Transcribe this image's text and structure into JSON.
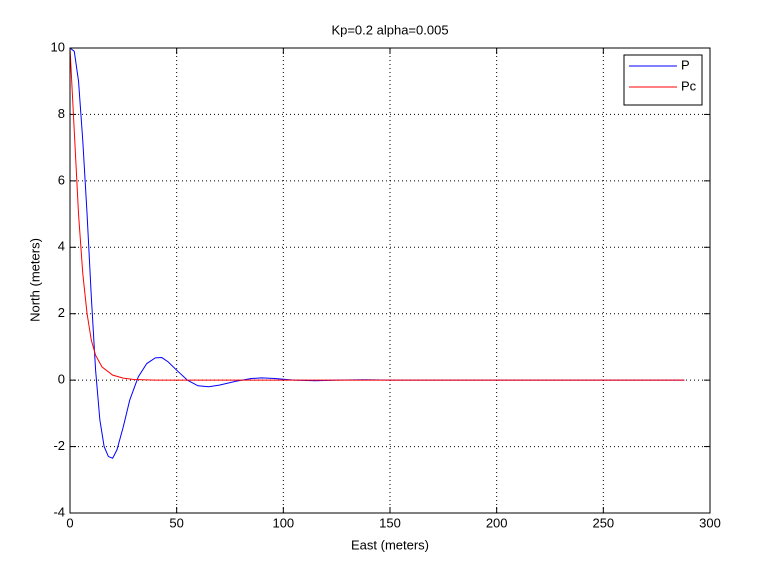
{
  "chart_data": {
    "type": "line",
    "title": "Kp=0.2 alpha=0.005",
    "x_label": "East (meters)",
    "y_label": "North (meters)",
    "xlim": [
      0,
      300
    ],
    "ylim": [
      -4,
      10
    ],
    "xticks": [
      0,
      50,
      100,
      150,
      200,
      250,
      300
    ],
    "yticks": [
      -4,
      -2,
      0,
      2,
      4,
      6,
      8,
      10
    ],
    "grid": true,
    "legend_position": "upper-right",
    "series": [
      {
        "name": "P",
        "color": "#0000ff",
        "x": [
          0,
          2,
          4,
          6,
          8,
          10,
          12,
          14,
          16,
          18,
          20,
          22,
          25,
          28,
          32,
          36,
          40,
          43,
          46,
          50,
          55,
          60,
          65,
          70,
          78,
          85,
          90,
          96,
          105,
          115,
          125,
          138,
          150,
          170,
          288
        ],
        "values": [
          10,
          9.9,
          9,
          7.2,
          5,
          2.5,
          0.3,
          -1.2,
          -2,
          -2.3,
          -2.35,
          -2.1,
          -1.4,
          -0.6,
          0.1,
          0.5,
          0.67,
          0.68,
          0.55,
          0.3,
          0,
          -0.17,
          -0.2,
          -0.15,
          -0.03,
          0.05,
          0.07,
          0.05,
          0,
          -0.02,
          0,
          0.01,
          0,
          0,
          0
        ]
      },
      {
        "name": "Pc",
        "color": "#ff0000",
        "x": [
          0,
          2,
          4,
          6,
          8,
          10,
          12,
          15,
          20,
          25,
          30,
          40,
          60,
          100,
          200,
          288
        ],
        "values": [
          10,
          7.5,
          5,
          3.2,
          2,
          1.2,
          0.75,
          0.4,
          0.15,
          0.06,
          0.02,
          0,
          0,
          0,
          0,
          0
        ]
      }
    ]
  }
}
